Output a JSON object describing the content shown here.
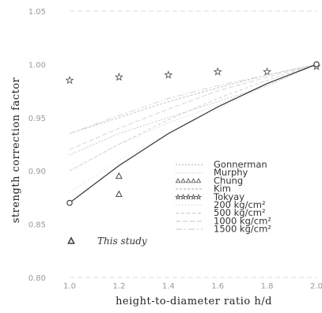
{
  "chart_data": {
    "type": "line",
    "xlabel": "height-to-diameter ratio  h/d",
    "ylabel": "strength correction factor",
    "xlim": [
      1.0,
      2.0
    ],
    "ylim": [
      0.8,
      1.05
    ],
    "xticks": [
      1.0,
      1.2,
      1.4,
      1.6,
      1.8,
      2.0
    ],
    "xtick_labels": [
      "1.0",
      "1.2",
      "1.4",
      "1.6",
      "1.8",
      "2.0"
    ],
    "yticks": [
      0.8,
      0.85,
      0.9,
      0.95,
      1.0,
      1.05
    ],
    "ytick_labels": [
      "0.80",
      "0.85",
      "0.90",
      "0.95",
      "1.00",
      "1.05"
    ],
    "grid": false,
    "legend_position": "bottom-right",
    "series": [
      {
        "name": "Gonnerman",
        "kind": "line",
        "dash": "2,2",
        "color": "#c8c8c8",
        "x": [
          1.0,
          1.2,
          1.4,
          1.6,
          1.8,
          2.0
        ],
        "y": [
          0.915,
          0.935,
          0.95,
          0.965,
          0.98,
          1.0
        ]
      },
      {
        "name": "Murphy",
        "kind": "line",
        "dash": "1,2",
        "color": "#cccccc",
        "x": [
          1.0,
          1.2,
          1.4,
          1.6,
          1.8,
          2.0
        ],
        "y": [
          0.9,
          0.925,
          0.945,
          0.962,
          0.98,
          1.0
        ]
      },
      {
        "name": "Chung",
        "kind": "marker",
        "marker": "triangle",
        "x": [
          1.2,
          1.2
        ],
        "y": [
          0.878,
          0.895
        ]
      },
      {
        "name": "Kim",
        "kind": "line",
        "dash": "3,2",
        "color": "#c4c4c4",
        "x": [
          1.0,
          1.2,
          1.4,
          1.6,
          1.8,
          2.0
        ],
        "y": [
          0.935,
          0.95,
          0.965,
          0.978,
          0.99,
          1.0
        ]
      },
      {
        "name": "Tokyay",
        "kind": "marker",
        "marker": "star",
        "x": [
          1.0,
          1.2,
          1.4,
          1.6,
          1.8,
          2.0
        ],
        "y": [
          0.985,
          0.988,
          0.99,
          0.993,
          0.993,
          0.998
        ]
      },
      {
        "name": "200  kg/cm²",
        "kind": "line",
        "dash": "1,3",
        "color": "#d2d2d2",
        "x": [
          1.0,
          1.2,
          1.4,
          1.6,
          1.8,
          2.0
        ],
        "y": [
          0.88,
          0.91,
          0.935,
          0.958,
          0.98,
          1.0
        ]
      },
      {
        "name": "500  kg/cm²",
        "kind": "line",
        "dash": "4,3",
        "color": "#d2d2d2",
        "x": [
          1.0,
          1.2,
          1.4,
          1.6,
          1.8,
          2.0
        ],
        "y": [
          0.9,
          0.925,
          0.948,
          0.968,
          0.985,
          1.0
        ]
      },
      {
        "name": "1000  kg/cm²",
        "kind": "line",
        "dash": "6,3",
        "color": "#d6d6d6",
        "x": [
          1.0,
          1.2,
          1.4,
          1.6,
          1.8,
          2.0
        ],
        "y": [
          0.92,
          0.94,
          0.958,
          0.975,
          0.988,
          1.0
        ]
      },
      {
        "name": "1500  kg/cm²",
        "kind": "line",
        "dash": "8,3,2,3",
        "color": "#d6d6d6",
        "x": [
          1.0,
          1.2,
          1.4,
          1.6,
          1.8,
          2.0
        ],
        "y": [
          0.935,
          0.952,
          0.968,
          0.98,
          0.99,
          1.0
        ]
      },
      {
        "name": "This study",
        "kind": "line+marker",
        "marker": "circle",
        "color": "#333333",
        "x": [
          1.0,
          1.2,
          1.4,
          1.6,
          1.8,
          2.0
        ],
        "y": [
          0.87,
          0.905,
          0.935,
          0.96,
          0.982,
          1.0
        ]
      }
    ],
    "annotations": [
      {
        "text": "This study",
        "marker": "triangle"
      }
    ]
  }
}
